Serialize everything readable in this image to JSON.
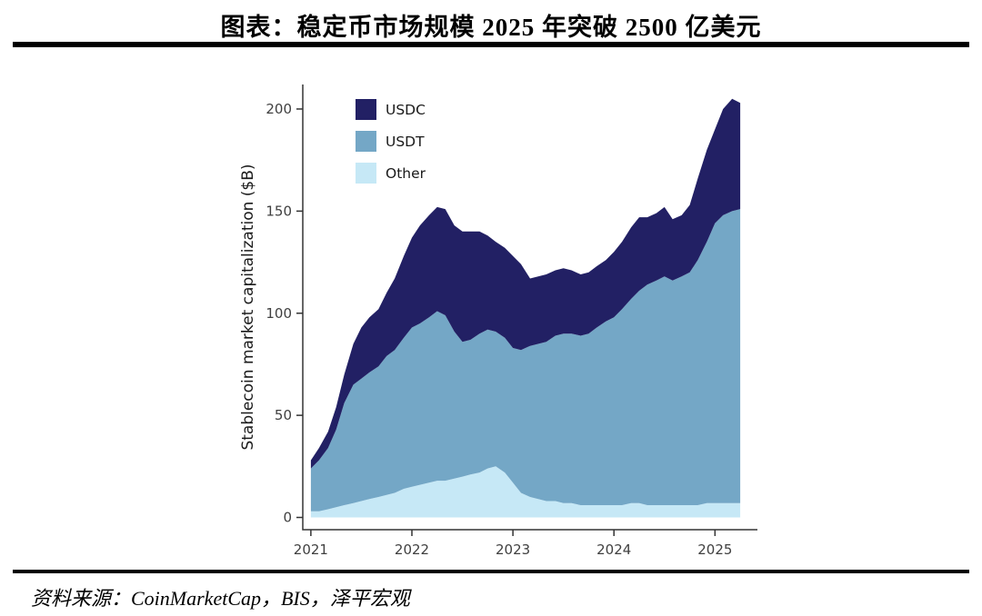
{
  "title": "图表：稳定币市场规模 2025 年突破 2500 亿美元",
  "source": "资料来源：CoinMarketCap，BIS，泽平宏观",
  "colors": {
    "usdc": "#222064",
    "usdt": "#74a7c6",
    "other": "#c6e8f6",
    "axis": "#333333",
    "rule": "#000000"
  },
  "chart_data": {
    "type": "area",
    "stacked": true,
    "title": "",
    "xlabel": "",
    "ylabel": "Stablecoin market capitalization ($B)",
    "x_ticks": [
      2021,
      2022,
      2023,
      2024,
      2025
    ],
    "y_ticks": [
      0,
      50,
      100,
      150,
      200
    ],
    "xlim": [
      2020.92,
      2025.42
    ],
    "ylim": [
      -6,
      212
    ],
    "grid": false,
    "legend_position": "top-left-inside",
    "legend": [
      {
        "label": "USDC",
        "color": "#222064"
      },
      {
        "label": "USDT",
        "color": "#74a7c6"
      },
      {
        "label": "Other",
        "color": "#c6e8f6"
      }
    ],
    "x": [
      2021.0,
      2021.08,
      2021.17,
      2021.25,
      2021.33,
      2021.42,
      2021.5,
      2021.58,
      2021.67,
      2021.75,
      2021.83,
      2021.92,
      2022.0,
      2022.08,
      2022.17,
      2022.25,
      2022.33,
      2022.42,
      2022.5,
      2022.58,
      2022.67,
      2022.75,
      2022.83,
      2022.92,
      2023.0,
      2023.08,
      2023.17,
      2023.25,
      2023.33,
      2023.42,
      2023.5,
      2023.58,
      2023.67,
      2023.75,
      2023.83,
      2023.92,
      2024.0,
      2024.08,
      2024.17,
      2024.25,
      2024.33,
      2024.42,
      2024.5,
      2024.58,
      2024.67,
      2024.75,
      2024.83,
      2024.92,
      2025.0,
      2025.08,
      2025.17,
      2025.25
    ],
    "series": [
      {
        "name": "Other",
        "color": "#c6e8f6",
        "values": [
          3,
          3,
          4,
          5,
          6,
          7,
          8,
          9,
          10,
          11,
          12,
          14,
          15,
          16,
          17,
          18,
          18,
          19,
          20,
          21,
          22,
          24,
          25,
          22,
          17,
          12,
          10,
          9,
          8,
          8,
          7,
          7,
          6,
          6,
          6,
          6,
          6,
          6,
          7,
          7,
          6,
          6,
          6,
          6,
          6,
          6,
          6,
          7,
          7,
          7,
          7,
          7
        ]
      },
      {
        "name": "USDT",
        "color": "#74a7c6",
        "values": [
          21,
          25,
          30,
          38,
          50,
          58,
          60,
          62,
          64,
          68,
          70,
          74,
          78,
          79,
          81,
          83,
          81,
          72,
          66,
          66,
          68,
          68,
          66,
          66,
          66,
          70,
          74,
          76,
          78,
          81,
          83,
          83,
          83,
          84,
          87,
          90,
          92,
          96,
          100,
          104,
          108,
          110,
          112,
          110,
          112,
          114,
          120,
          128,
          137,
          141,
          143,
          144
        ]
      },
      {
        "name": "USDC",
        "color": "#222064",
        "values": [
          4,
          6,
          8,
          11,
          14,
          20,
          25,
          27,
          28,
          31,
          35,
          40,
          44,
          48,
          50,
          51,
          52,
          52,
          54,
          53,
          50,
          46,
          44,
          44,
          45,
          42,
          33,
          33,
          33,
          32,
          32,
          31,
          30,
          30,
          30,
          30,
          32,
          33,
          35,
          36,
          33,
          33,
          34,
          30,
          30,
          33,
          40,
          45,
          46,
          52,
          55,
          52
        ]
      }
    ]
  }
}
